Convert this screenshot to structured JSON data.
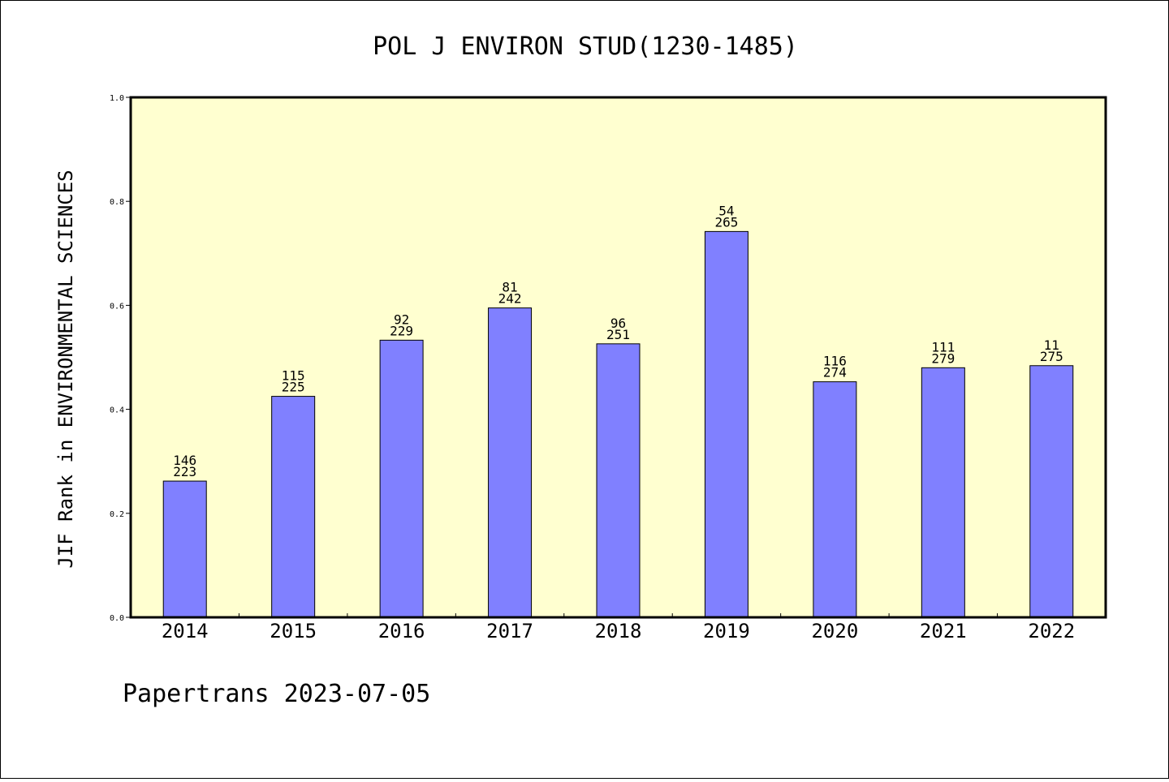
{
  "chart_data": {
    "type": "bar",
    "title": "POL J ENVIRON STUD(1230-1485)",
    "xlabel": "",
    "ylabel": "JIF Rank in ENVIRONMENTAL SCIENCES",
    "ylim": [
      0.0,
      1.0
    ],
    "yticks": [
      "0.0",
      "0.2",
      "0.4",
      "0.6",
      "0.8",
      "1.0"
    ],
    "categories": [
      "2014",
      "2015",
      "2016",
      "2017",
      "2018",
      "2019",
      "2020",
      "2021",
      "2022"
    ],
    "values": [
      0.262,
      0.425,
      0.533,
      0.595,
      0.526,
      0.742,
      0.453,
      0.48,
      0.484
    ],
    "rank": [
      "146",
      "115",
      "92",
      "81",
      "96",
      "54",
      "116",
      "111",
      "11"
    ],
    "total": [
      "223",
      "225",
      "229",
      "242",
      "251",
      "265",
      "274",
      "279",
      "275"
    ],
    "grid": false,
    "colors": {
      "bar_fill": "#8080ff",
      "plot_background": "#ffffd0",
      "axis": "#000000"
    }
  },
  "footer": "Papertrans 2023-07-05"
}
